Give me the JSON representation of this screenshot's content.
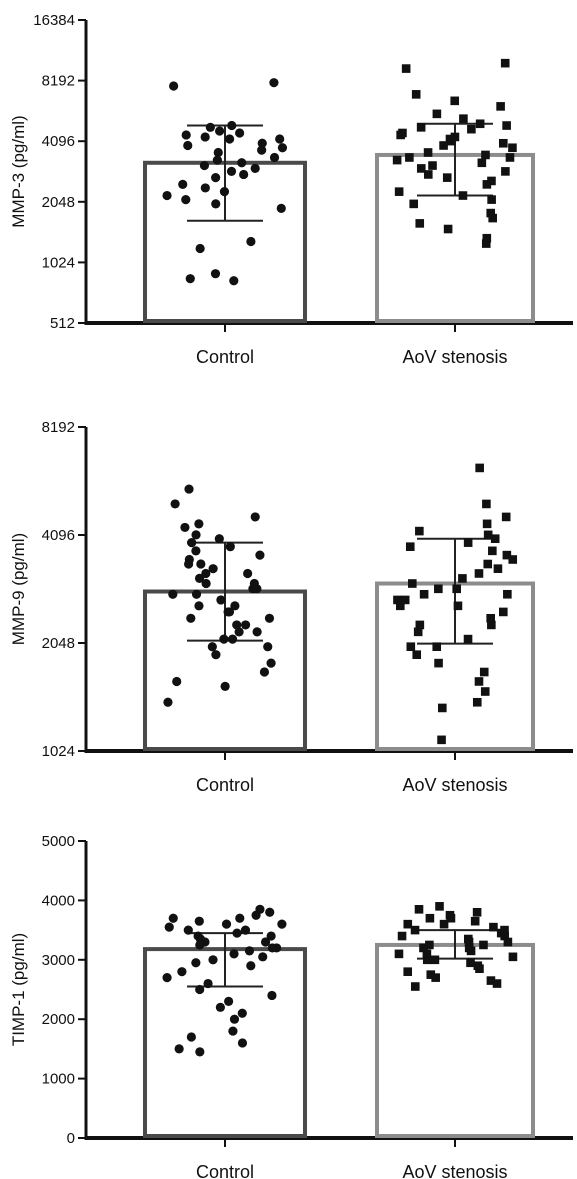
{
  "chart_data": [
    {
      "type": "bar",
      "categories": [
        "Control",
        "AoV stenosis"
      ],
      "ylabel": "MMP-3 (pg/ml)",
      "scale": "log2",
      "ylim": [
        512,
        16384
      ],
      "yticks": [
        "512",
        "1024",
        "2048",
        "4096",
        "8192",
        "16384"
      ],
      "series": [
        {
          "values": [
            3200,
            3500
          ],
          "sd": [
            [
              1650,
              4900
            ],
            [
              2200,
              5000
            ]
          ],
          "marker": "circle",
          "points": [
            [
              8000,
              7700,
              4900,
              4800,
              4600,
              4500,
              4400,
              4300,
              4200,
              4200,
              4000,
              3900,
              3800,
              3700,
              3600,
              3400,
              3300,
              3200,
              3100,
              3000,
              2900,
              2800,
              2700,
              2500,
              2400,
              2300,
              2200,
              2100,
              2000,
              1900,
              1300,
              1200,
              900,
              850,
              830
            ],
            [
              10000,
              9400,
              7000,
              6500,
              6100,
              5600,
              5300,
              5000,
              4900,
              4800,
              4700,
              4500,
              4400,
              4300,
              4200,
              4100,
              4000,
              3900,
              3800,
              3600,
              3500,
              3400,
              3400,
              3300,
              3200,
              3100,
              3000,
              2900,
              2800,
              2700,
              2600,
              2500,
              2300,
              2200,
              2100,
              2000,
              1800,
              1700,
              1600,
              1500,
              1350,
              1270
            ]
          ]
        }
      ]
    },
    {
      "type": "bar",
      "categories": [
        "Control",
        "AoV stenosis"
      ],
      "ylabel": "MMP-9 (pg/ml)",
      "scale": "log2",
      "ylim": [
        1024,
        8192
      ],
      "yticks": [
        "1024",
        "2048",
        "4096",
        "8192"
      ],
      "series": [
        {
          "values": [
            2850,
            3000
          ],
          "sd": [
            [
              2080,
              3900
            ],
            [
              2040,
              4000
            ]
          ],
          "marker": "circle",
          "points": [
            [
              5500,
              5000,
              4600,
              4400,
              4300,
              4100,
              4000,
              3900,
              3800,
              3700,
              3600,
              3500,
              3400,
              3400,
              3300,
              3200,
              3200,
              3100,
              3000,
              3000,
              2900,
              2900,
              2800,
              2800,
              2700,
              2600,
              2600,
              2500,
              2500,
              2400,
              2400,
              2300,
              2300,
              2200,
              2200,
              2100,
              2100,
              2000,
              2000,
              1900,
              1800,
              1700,
              1600,
              1550,
              1400
            ],
            [
              6300,
              5000,
              4600,
              4400,
              4200,
              4100,
              4000,
              3900,
              3800,
              3700,
              3600,
              3500,
              3400,
              3300,
              3200,
              3100,
              3000,
              2900,
              2900,
              2800,
              2800,
              2700,
              2700,
              2600,
              2600,
              2500,
              2400,
              2300,
              2300,
              2200,
              2100,
              2000,
              2000,
              1900,
              1800,
              1700,
              1600,
              1500,
              1400,
              1350,
              1100
            ]
          ]
        }
      ]
    },
    {
      "type": "bar",
      "categories": [
        "Control",
        "AoV stenosis"
      ],
      "ylabel": "TIMP-1 (pg/ml)",
      "scale": "linear",
      "ylim": [
        0,
        5000
      ],
      "yticks": [
        "0",
        "1000",
        "2000",
        "3000",
        "4000",
        "5000"
      ],
      "series": [
        {
          "values": [
            3180,
            3250
          ],
          "sd": [
            [
              2550,
              3450
            ],
            [
              3020,
              3500
            ]
          ],
          "marker": "circle",
          "points": [
            [
              3850,
              3800,
              3750,
              3700,
              3700,
              3650,
              3600,
              3600,
              3550,
              3500,
              3500,
              3450,
              3400,
              3400,
              3350,
              3300,
              3300,
              3250,
              3200,
              3200,
              3150,
              3100,
              3050,
              3000,
              2950,
              2900,
              2800,
              2700,
              2600,
              2500,
              2400,
              2300,
              2200,
              2100,
              2000,
              1800,
              1700,
              1600,
              1500,
              1450
            ],
            [
              3900,
              3850,
              3800,
              3750,
              3700,
              3700,
              3650,
              3600,
              3600,
              3550,
              3500,
              3500,
              3450,
              3400,
              3400,
              3350,
              3300,
              3300,
              3250,
              3250,
              3200,
              3200,
              3150,
              3100,
              3100,
              3050,
              3000,
              3000,
              2950,
              2900,
              2850,
              2800,
              2750,
              2700,
              2650,
              2600,
              2550
            ]
          ]
        }
      ]
    }
  ]
}
